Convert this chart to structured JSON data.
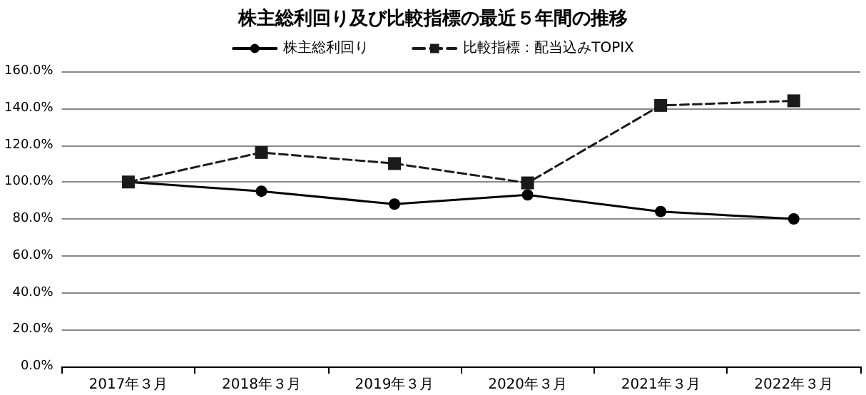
{
  "chart_data": {
    "type": "line",
    "title": "株主総利回り及び比較指標の最近５年間の推移",
    "categories": [
      "2017年３月",
      "2018年３月",
      "2019年３月",
      "2020年３月",
      "2021年３月",
      "2022年３月"
    ],
    "series": [
      {
        "name": "株主総利回り",
        "color": "#000000",
        "values": [
          100,
          95,
          88,
          93,
          84,
          80
        ],
        "marker": "circle",
        "line_style": "solid"
      },
      {
        "name": "比較指標：配当込みTOPIX",
        "color": "#1a1a1a",
        "values": [
          100,
          116,
          110,
          99.5,
          141.5,
          144
        ],
        "marker": "square",
        "line_style": "dashed"
      }
    ],
    "ylim": [
      0,
      160
    ],
    "yticks": [
      {
        "value": 0,
        "label": "0.0%"
      },
      {
        "value": 20,
        "label": "20.0%"
      },
      {
        "value": 40,
        "label": "40.0%"
      },
      {
        "value": 60,
        "label": "60.0%"
      },
      {
        "value": 80,
        "label": "80.0%"
      },
      {
        "value": 100,
        "label": "100.0%"
      },
      {
        "value": 120,
        "label": "120.0%"
      },
      {
        "value": 140,
        "label": "140.0%"
      },
      {
        "value": 160,
        "label": "160.0%"
      }
    ],
    "grid": "y",
    "legend": "top"
  }
}
